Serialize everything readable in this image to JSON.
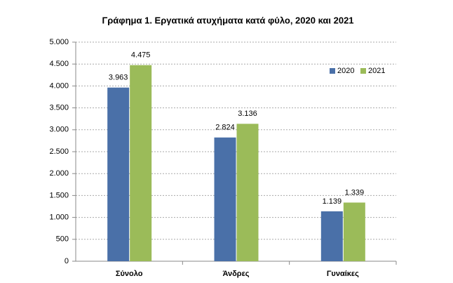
{
  "chart_data": {
    "type": "bar",
    "title": "Γράφημα 1. Εργατικά ατυχήματα κατά φύλο, 2020 και 2021",
    "categories": [
      "Σύνολο",
      "Άνδρες",
      "Γυναίκες"
    ],
    "series": [
      {
        "name": "2020",
        "color": "#4a70a8",
        "values": [
          3963,
          2824,
          1139
        ],
        "value_labels": [
          "3.963",
          "2.824",
          "1.139"
        ]
      },
      {
        "name": "2021",
        "color": "#9bbb59",
        "values": [
          4475,
          3136,
          1339
        ],
        "value_labels": [
          "4.475",
          "3.136",
          "1.339"
        ]
      }
    ],
    "ylim": [
      0,
      5000
    ],
    "yticks": [
      0,
      500,
      {
        "value": 1000,
        "label": "1.000"
      },
      {
        "value": 1500,
        "label": "1.500"
      },
      {
        "value": 2000,
        "label": "2.000"
      },
      {
        "value": 2500,
        "label": "2.500"
      },
      {
        "value": 3000,
        "label": "3.000"
      },
      {
        "value": 3500,
        "label": "3.500"
      },
      {
        "value": 4000,
        "label": "4.000"
      },
      {
        "value": 4500,
        "label": "4.500"
      },
      {
        "value": 5000,
        "label": "5.000"
      }
    ],
    "grid": true,
    "legend": "upper-right"
  }
}
